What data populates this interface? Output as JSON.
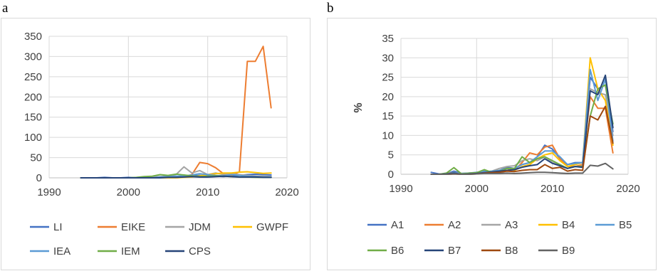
{
  "panel_labels": {
    "a": "a",
    "b": "b"
  },
  "chart_data": [
    {
      "type": "line",
      "panel": "a",
      "title": "",
      "xlabel": "",
      "ylabel": "",
      "xlim": [
        1990,
        2020
      ],
      "ylim": [
        0,
        350
      ],
      "x_ticks": [
        1990,
        2000,
        2010,
        2020
      ],
      "y_ticks": [
        0,
        50,
        100,
        150,
        200,
        250,
        300,
        350
      ],
      "grid": true,
      "legend_position": "bottom",
      "x": [
        1994,
        1995,
        1996,
        1997,
        1998,
        1999,
        2000,
        2001,
        2002,
        2003,
        2004,
        2005,
        2006,
        2007,
        2008,
        2009,
        2010,
        2011,
        2012,
        2013,
        2014,
        2015,
        2016,
        2017,
        2018
      ],
      "series": [
        {
          "name": "LI",
          "color": "#4472C4",
          "values": [
            0,
            0,
            0,
            1,
            0,
            0,
            1,
            0,
            0,
            1,
            1,
            2,
            2,
            3,
            5,
            6,
            5,
            4,
            3,
            5,
            6,
            8,
            9,
            8,
            7
          ]
        },
        {
          "name": "EIKE",
          "color": "#ED7D31",
          "values": [
            0,
            0,
            0,
            0,
            0,
            0,
            0,
            0,
            0,
            0,
            0,
            0,
            0,
            2,
            8,
            38,
            35,
            25,
            10,
            6,
            15,
            288,
            288,
            325,
            173
          ]
        },
        {
          "name": "JDM",
          "color": "#A5A5A5",
          "values": [
            0,
            0,
            0,
            0,
            0,
            0,
            0,
            0,
            1,
            2,
            3,
            4,
            8,
            27,
            12,
            18,
            8,
            12,
            8,
            10,
            8,
            6,
            5,
            4,
            3
          ]
        },
        {
          "name": "GWPF",
          "color": "#FFC000",
          "values": [
            0,
            0,
            0,
            0,
            0,
            0,
            0,
            0,
            0,
            0,
            0,
            0,
            0,
            1,
            2,
            5,
            8,
            10,
            12,
            12,
            14,
            15,
            13,
            11,
            12
          ]
        },
        {
          "name": "IEA",
          "color": "#5B9BD5",
          "values": [
            0,
            0,
            0,
            0,
            0,
            0,
            0,
            0,
            0,
            0,
            2,
            3,
            4,
            5,
            7,
            10,
            8,
            6,
            5,
            8,
            6,
            4,
            3,
            2,
            2
          ]
        },
        {
          "name": "IEM",
          "color": "#70AD47",
          "values": [
            0,
            0,
            0,
            0,
            0,
            0,
            0,
            1,
            3,
            4,
            8,
            6,
            9,
            7,
            5,
            3,
            4,
            5,
            4,
            3,
            2,
            2,
            1,
            1,
            1
          ]
        },
        {
          "name": "CPS",
          "color": "#264478",
          "values": [
            0,
            0,
            0,
            0,
            0,
            0,
            0,
            0,
            0,
            0,
            0,
            1,
            1,
            2,
            3,
            2,
            2,
            3,
            4,
            3,
            2,
            2,
            2,
            1,
            1
          ]
        }
      ]
    },
    {
      "type": "line",
      "panel": "b",
      "title": "",
      "xlabel": "",
      "ylabel": "%",
      "xlim": [
        1990,
        2020
      ],
      "ylim": [
        0,
        35
      ],
      "x_ticks": [
        1990,
        2000,
        2010,
        2020
      ],
      "y_ticks": [
        0,
        5,
        10,
        15,
        20,
        25,
        30,
        35
      ],
      "grid": true,
      "legend_position": "bottom",
      "x": [
        1994,
        1995,
        1996,
        1997,
        1998,
        1999,
        2000,
        2001,
        2002,
        2003,
        2004,
        2005,
        2006,
        2007,
        2008,
        2009,
        2010,
        2011,
        2012,
        2013,
        2014,
        2015,
        2016,
        2017,
        2018
      ],
      "series": [
        {
          "name": "A1",
          "color": "#4472C4",
          "values": [
            0.5,
            0.1,
            0.1,
            0.8,
            0.2,
            0.3,
            0.3,
            0.8,
            0.5,
            1.0,
            1.8,
            1.5,
            2.5,
            3.0,
            4.5,
            7.5,
            6.5,
            4.0,
            2.5,
            3.0,
            3.0,
            25.0,
            22.0,
            23.0,
            11.0
          ]
        },
        {
          "name": "A2",
          "color": "#ED7D31",
          "values": [
            0.0,
            0.0,
            0.0,
            0.1,
            0.0,
            0.0,
            0.2,
            0.3,
            0.5,
            0.8,
            1.5,
            1.0,
            3.0,
            5.5,
            5.0,
            7.0,
            7.5,
            4.0,
            2.0,
            2.0,
            2.5,
            20.0,
            17.0,
            17.0,
            5.5
          ]
        },
        {
          "name": "A3",
          "color": "#A5A5A5",
          "values": [
            0.0,
            0.0,
            0.1,
            0.3,
            0.1,
            0.1,
            0.2,
            0.5,
            0.8,
            1.5,
            2.0,
            2.2,
            3.5,
            4.0,
            3.5,
            4.5,
            3.0,
            2.5,
            1.5,
            2.0,
            2.0,
            22.0,
            21.0,
            20.5,
            10.0
          ]
        },
        {
          "name": "B4",
          "color": "#FFC000",
          "values": [
            0.0,
            0.0,
            0.2,
            0.4,
            0.2,
            0.2,
            0.4,
            0.6,
            0.8,
            1.0,
            1.5,
            1.0,
            2.0,
            2.5,
            4.0,
            5.0,
            5.5,
            3.5,
            2.0,
            2.5,
            3.0,
            30.0,
            22.0,
            19.0,
            7.5
          ]
        },
        {
          "name": "B5",
          "color": "#5B9BD5",
          "values": [
            0.0,
            0.0,
            0.1,
            0.4,
            0.2,
            0.3,
            0.5,
            0.7,
            0.8,
            1.0,
            1.5,
            1.5,
            2.5,
            3.0,
            4.5,
            6.0,
            6.0,
            4.5,
            2.5,
            2.8,
            3.0,
            27.0,
            19.0,
            24.5,
            8.5
          ]
        },
        {
          "name": "B6",
          "color": "#70AD47",
          "values": [
            0.0,
            0.0,
            0.3,
            1.7,
            0.1,
            0.3,
            0.4,
            1.2,
            0.5,
            0.7,
            1.5,
            1.5,
            4.5,
            3.0,
            4.0,
            4.5,
            3.5,
            2.5,
            1.5,
            2.0,
            2.0,
            15.0,
            22.0,
            23.0,
            13.0
          ]
        },
        {
          "name": "B7",
          "color": "#264478",
          "values": [
            0.0,
            0.0,
            0.1,
            0.3,
            0.0,
            0.1,
            0.2,
            0.4,
            0.6,
            0.8,
            1.0,
            1.2,
            1.8,
            2.2,
            2.5,
            4.0,
            2.8,
            2.2,
            1.5,
            2.0,
            1.8,
            21.5,
            20.5,
            25.5,
            12.0
          ]
        },
        {
          "name": "B8",
          "color": "#9E480E",
          "values": [
            0.0,
            0.0,
            0.0,
            0.1,
            0.0,
            0.0,
            0.1,
            0.3,
            0.4,
            0.5,
            0.8,
            0.7,
            1.0,
            1.2,
            1.2,
            2.5,
            1.5,
            1.8,
            0.8,
            1.2,
            1.0,
            15.0,
            14.0,
            17.5,
            8.0
          ]
        },
        {
          "name": "B9",
          "color": "#636363",
          "values": [
            0.0,
            0.0,
            0.0,
            0.1,
            0.0,
            0.0,
            0.1,
            0.2,
            0.2,
            0.2,
            0.3,
            0.2,
            0.3,
            0.4,
            0.5,
            0.5,
            0.4,
            0.3,
            0.2,
            0.3,
            0.3,
            2.3,
            2.1,
            2.8,
            1.4
          ]
        }
      ]
    }
  ]
}
